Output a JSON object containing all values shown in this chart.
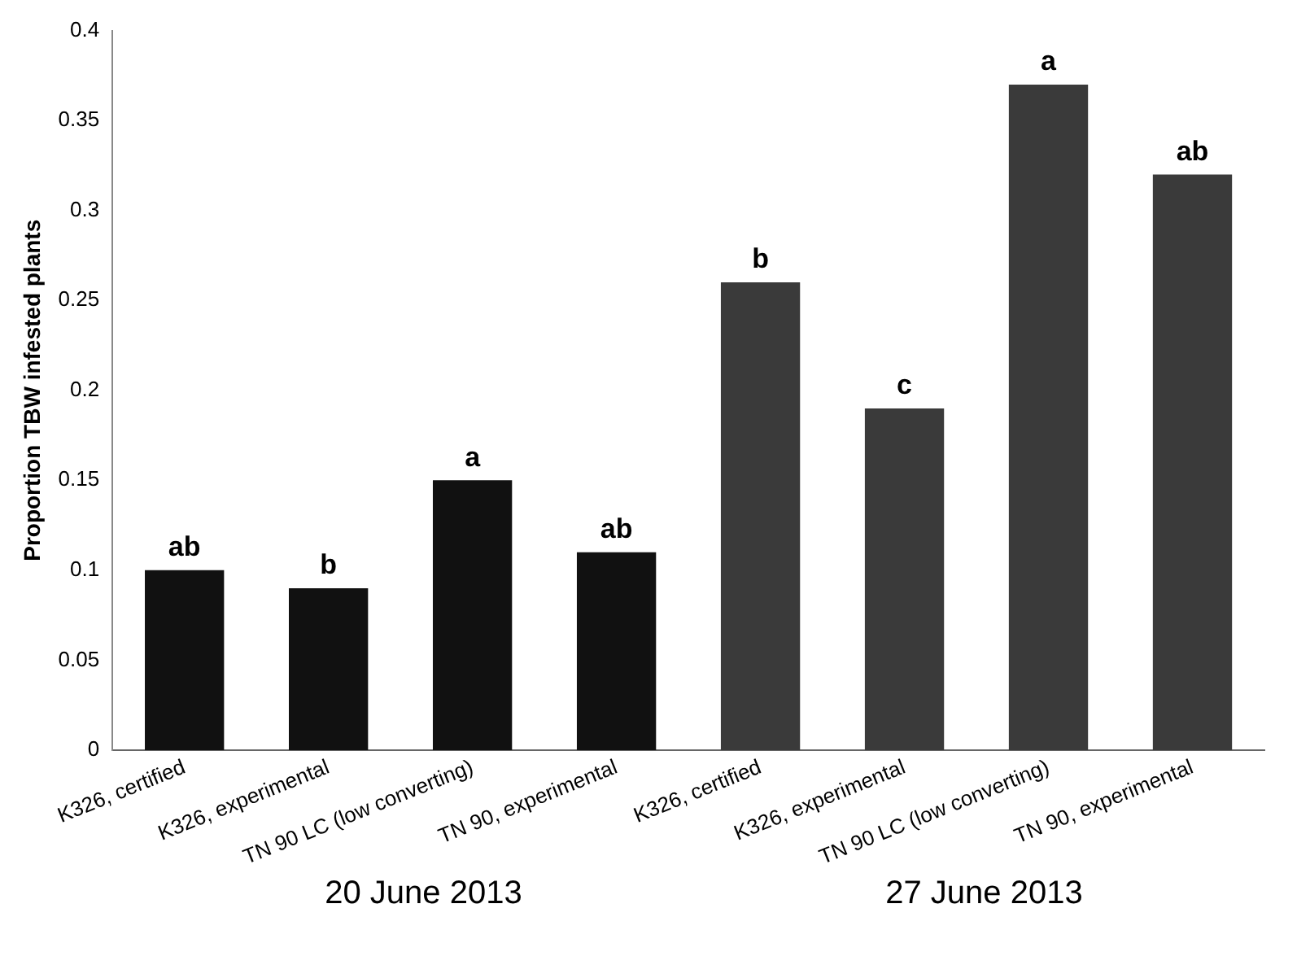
{
  "chart_data": {
    "type": "bar",
    "ylabel": "Proportion TBW infested plants",
    "categories": [
      "K326, certified",
      "K326, experimental",
      "TN 90 LC (low converting)",
      "TN 90, experimental",
      "K326, certified",
      "K326, experimental",
      "TN 90 LC (low converting)",
      "TN 90, experimental"
    ],
    "values": [
      0.1,
      0.09,
      0.15,
      0.11,
      0.26,
      0.19,
      0.37,
      0.32
    ],
    "colors": [
      "#111111",
      "#111111",
      "#111111",
      "#111111",
      "#3a3a3a",
      "#3a3a3a",
      "#3a3a3a",
      "#3a3a3a"
    ],
    "value_labels": [
      "ab",
      "b",
      "a",
      "ab",
      "b",
      "c",
      "a",
      "ab"
    ],
    "ylim": [
      0,
      0.4
    ],
    "yticks": [
      0,
      0.05,
      0.1,
      0.15,
      0.2,
      0.25,
      0.3,
      0.35,
      0.4
    ],
    "annotations": [
      "20 June 2013",
      "27 June 2013"
    ],
    "grid": false,
    "legend": false
  }
}
